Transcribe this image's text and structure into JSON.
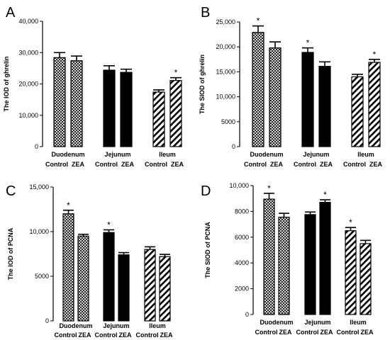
{
  "colors": {
    "bar": "#000000",
    "fill_solid": "#000000",
    "background": "#ffffff"
  },
  "chart_data": [
    {
      "panel": "A",
      "type": "bar",
      "ylabel": "The IOD of ghrelin",
      "ylim": [
        0,
        40000
      ],
      "yticks": [
        "0",
        "10,000",
        "20,000",
        "30,000",
        "40,000"
      ],
      "groups": [
        "Duodenum",
        "Jejunum",
        "Ileum"
      ],
      "categories": [
        "Control",
        "ZEA",
        "Control",
        "ZEA",
        "Control",
        "ZEA"
      ],
      "patterns": [
        "cross",
        "cross",
        "solid",
        "solid",
        "diag",
        "diag"
      ],
      "values": [
        28400,
        27400,
        24400,
        23700,
        17400,
        21100
      ],
      "errors": [
        1600,
        1500,
        1400,
        1000,
        700,
        900
      ],
      "stars": [
        false,
        false,
        false,
        false,
        false,
        true
      ]
    },
    {
      "panel": "B",
      "type": "bar",
      "ylabel": "The SIOD of ghrelin",
      "ylim": [
        0,
        25000
      ],
      "yticks": [
        "0",
        "5000",
        "10,000",
        "15,000",
        "20,000",
        "25,000"
      ],
      "groups": [
        "Duodenum",
        "Jejunum",
        "Ileum"
      ],
      "categories": [
        "Control",
        "ZEA",
        "Control",
        "ZEA",
        "Control",
        "ZEA"
      ],
      "patterns": [
        "cross",
        "cross",
        "solid",
        "solid",
        "diag",
        "diag"
      ],
      "values": [
        22900,
        19800,
        18900,
        16100,
        14000,
        16900
      ],
      "errors": [
        1300,
        1200,
        900,
        900,
        500,
        600
      ],
      "stars": [
        true,
        false,
        true,
        false,
        false,
        true
      ]
    },
    {
      "panel": "C",
      "type": "bar",
      "ylabel": "The IOD  of PCNA",
      "ylim": [
        0,
        15000
      ],
      "yticks": [
        "0",
        "5000",
        "10,000",
        "15,000"
      ],
      "groups": [
        "Duodenum",
        "Jejunum",
        "Ileum"
      ],
      "categories": [
        "Control",
        "ZEA",
        "Control",
        "ZEA",
        "Control",
        "ZEA"
      ],
      "patterns": [
        "cross",
        "cross",
        "solid",
        "solid",
        "diag",
        "diag"
      ],
      "values": [
        12000,
        9500,
        9900,
        7400,
        8000,
        7200
      ],
      "errors": [
        400,
        200,
        300,
        250,
        300,
        250
      ],
      "stars": [
        true,
        false,
        true,
        false,
        false,
        false
      ]
    },
    {
      "panel": "D",
      "type": "bar",
      "ylabel": "The SIOD of PCNA",
      "ylim": [
        0,
        10000
      ],
      "yticks": [
        "0",
        "2000",
        "4000",
        "6000",
        "8000",
        "10,000"
      ],
      "groups": [
        "Duodenum",
        "Jejunum",
        "Ileum"
      ],
      "categories": [
        "Control",
        "ZEA",
        "Control",
        "ZEA",
        "Control",
        "ZEA"
      ],
      "patterns": [
        "cross",
        "cross",
        "solid",
        "solid",
        "diag",
        "diag"
      ],
      "values": [
        8950,
        7550,
        7750,
        8700,
        6500,
        5500
      ],
      "errors": [
        450,
        300,
        200,
        200,
        250,
        250
      ],
      "stars": [
        true,
        false,
        false,
        true,
        true,
        false
      ]
    }
  ]
}
